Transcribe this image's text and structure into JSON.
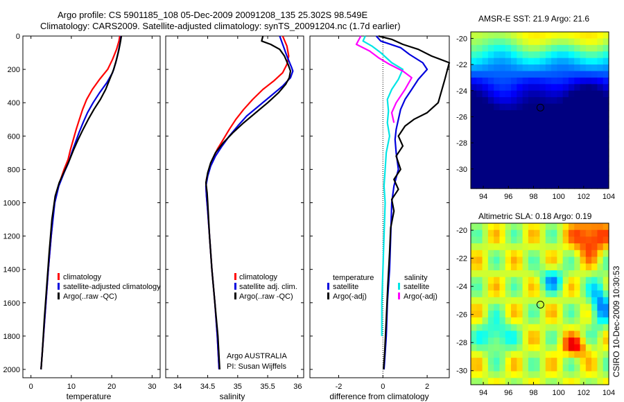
{
  "header": {
    "line1": "Argo profile: CS 5901185_108 05-Dec-2009 20091208_135 25.302S 98.549E",
    "line2": "Climatology: CARS2009. Satellite-adjusted climatology: synTS_20091204.nc (1.7d earlier)"
  },
  "colors": {
    "climatology": "#ff0000",
    "satellite": "#0000dd",
    "argo": "#000000",
    "salinity_sat": "#00e5e5",
    "salinity_argo": "#ff00ff"
  },
  "credits": {
    "org": "Argo AUSTRALIA",
    "pi": "PI: Susan Wijffels",
    "side": "CSIRO 10-Dec-2009 10:30:53"
  },
  "chart_data": [
    {
      "type": "line",
      "name": "temperature",
      "xlabel": "temperature",
      "ylabel": "",
      "xlim": [
        -2,
        32
      ],
      "ylim": [
        2050,
        0
      ],
      "xticks": [
        0,
        10,
        20,
        30
      ],
      "yticks": [
        0,
        200,
        400,
        600,
        800,
        1000,
        1200,
        1400,
        1600,
        1800,
        2000
      ],
      "legend": [
        "climatology",
        "satellite-adjusted climatology",
        "Argo(..raw -QC)"
      ],
      "series": [
        {
          "name": "climatology",
          "color": "#ff0000",
          "points": [
            [
              22.0,
              0
            ],
            [
              21.8,
              30
            ],
            [
              21.2,
              80
            ],
            [
              20.2,
              140
            ],
            [
              19.0,
              200
            ],
            [
              17.0,
              260
            ],
            [
              15.2,
              320
            ],
            [
              13.8,
              380
            ],
            [
              12.8,
              440
            ],
            [
              12.0,
              500
            ],
            [
              11.2,
              560
            ],
            [
              10.5,
              620
            ],
            [
              9.8,
              680
            ],
            [
              9.2,
              740
            ],
            [
              8.2,
              800
            ],
            [
              6.8,
              900
            ],
            [
              5.8,
              1000
            ],
            [
              5.0,
              1200
            ],
            [
              4.3,
              1400
            ],
            [
              3.7,
              1600
            ],
            [
              3.1,
              1800
            ],
            [
              2.5,
              2000
            ]
          ]
        },
        {
          "name": "satellite-adjusted climatology",
          "color": "#0000dd",
          "points": [
            [
              22.3,
              0
            ],
            [
              22.1,
              40
            ],
            [
              21.6,
              100
            ],
            [
              21.0,
              160
            ],
            [
              20.2,
              220
            ],
            [
              18.8,
              280
            ],
            [
              17.0,
              340
            ],
            [
              15.4,
              400
            ],
            [
              14.0,
              460
            ],
            [
              12.9,
              520
            ],
            [
              11.9,
              580
            ],
            [
              11.0,
              640
            ],
            [
              10.1,
              700
            ],
            [
              9.3,
              760
            ],
            [
              8.2,
              820
            ],
            [
              6.9,
              900
            ],
            [
              5.9,
              1000
            ],
            [
              5.0,
              1200
            ],
            [
              4.3,
              1400
            ],
            [
              3.7,
              1600
            ],
            [
              3.1,
              1800
            ],
            [
              2.5,
              2000
            ]
          ]
        },
        {
          "name": "Argo(..raw -QC)",
          "color": "#000000",
          "points": [
            [
              22.4,
              0
            ],
            [
              22.2,
              30
            ],
            [
              21.8,
              80
            ],
            [
              21.2,
              140
            ],
            [
              20.5,
              200
            ],
            [
              19.5,
              260
            ],
            [
              18.5,
              320
            ],
            [
              17.2,
              380
            ],
            [
              15.6,
              440
            ],
            [
              14.2,
              500
            ],
            [
              12.9,
              560
            ],
            [
              11.7,
              620
            ],
            [
              10.6,
              680
            ],
            [
              9.6,
              740
            ],
            [
              8.5,
              800
            ],
            [
              7.0,
              880
            ],
            [
              6.0,
              960
            ],
            [
              5.2,
              1100
            ],
            [
              4.5,
              1300
            ],
            [
              3.9,
              1500
            ],
            [
              3.3,
              1700
            ],
            [
              2.8,
              1900
            ],
            [
              2.5,
              2000
            ]
          ]
        }
      ]
    },
    {
      "type": "line",
      "name": "salinity",
      "xlabel": "salinity",
      "xlim": [
        33.8,
        36.1
      ],
      "ylim": [
        2050,
        0
      ],
      "xticks": [
        34,
        34.5,
        35,
        35.5,
        36
      ],
      "legend": [
        "climatology",
        "satellite adj. clim.",
        "Argo(..raw -QC)"
      ],
      "series": [
        {
          "name": "climatology",
          "color": "#ff0000",
          "points": [
            [
              35.75,
              0
            ],
            [
              35.82,
              60
            ],
            [
              35.85,
              120
            ],
            [
              35.82,
              170
            ],
            [
              35.75,
              220
            ],
            [
              35.6,
              270
            ],
            [
              35.42,
              320
            ],
            [
              35.25,
              380
            ],
            [
              35.1,
              440
            ],
            [
              34.97,
              500
            ],
            [
              34.86,
              560
            ],
            [
              34.76,
              620
            ],
            [
              34.66,
              680
            ],
            [
              34.58,
              740
            ],
            [
              34.52,
              800
            ],
            [
              34.48,
              860
            ],
            [
              34.47,
              900
            ],
            [
              34.48,
              960
            ],
            [
              34.5,
              1050
            ],
            [
              34.53,
              1200
            ],
            [
              34.57,
              1400
            ],
            [
              34.62,
              1600
            ],
            [
              34.66,
              1800
            ],
            [
              34.69,
              2000
            ]
          ]
        },
        {
          "name": "satellite adj. clim.",
          "color": "#0000dd",
          "points": [
            [
              35.7,
              0
            ],
            [
              35.76,
              60
            ],
            [
              35.82,
              120
            ],
            [
              35.9,
              190
            ],
            [
              35.92,
              210
            ],
            [
              35.88,
              250
            ],
            [
              35.75,
              300
            ],
            [
              35.55,
              360
            ],
            [
              35.35,
              420
            ],
            [
              35.15,
              480
            ],
            [
              35.0,
              540
            ],
            [
              34.86,
              600
            ],
            [
              34.74,
              660
            ],
            [
              34.63,
              720
            ],
            [
              34.55,
              780
            ],
            [
              34.5,
              840
            ],
            [
              34.47,
              900
            ],
            [
              34.48,
              960
            ],
            [
              34.5,
              1050
            ],
            [
              34.53,
              1200
            ],
            [
              34.57,
              1400
            ],
            [
              34.62,
              1600
            ],
            [
              34.66,
              1800
            ],
            [
              34.69,
              2000
            ]
          ]
        },
        {
          "name": "Argo(..raw -QC)",
          "color": "#000000",
          "points": [
            [
              35.42,
              0
            ],
            [
              35.4,
              30
            ],
            [
              35.55,
              50
            ],
            [
              35.7,
              80
            ],
            [
              35.78,
              120
            ],
            [
              35.84,
              170
            ],
            [
              35.88,
              210
            ],
            [
              35.86,
              250
            ],
            [
              35.8,
              290
            ],
            [
              35.68,
              340
            ],
            [
              35.5,
              400
            ],
            [
              35.3,
              460
            ],
            [
              35.1,
              520
            ],
            [
              34.92,
              580
            ],
            [
              34.76,
              640
            ],
            [
              34.63,
              700
            ],
            [
              34.55,
              760
            ],
            [
              34.5,
              820
            ],
            [
              34.47,
              880
            ],
            [
              34.49,
              940
            ],
            [
              34.5,
              1000
            ],
            [
              34.53,
              1200
            ],
            [
              34.57,
              1400
            ],
            [
              34.62,
              1600
            ],
            [
              34.67,
              1800
            ],
            [
              34.7,
              2000
            ]
          ]
        }
      ]
    },
    {
      "type": "line",
      "name": "difference",
      "xlabel": "difference from climatology",
      "xlim": [
        -3.3,
        3.0
      ],
      "ylim": [
        2050,
        0
      ],
      "xticks": [
        -2,
        0,
        2
      ],
      "zero_line": 0,
      "legend_left_title": "temperature",
      "legend_right_title": "salinity",
      "legend": [
        "satellite",
        "Argo(-adj)",
        "satellite",
        "Argo(-adj)"
      ],
      "series": [
        {
          "name": "temperature satellite",
          "color": "#0000dd",
          "points": [
            [
              -0.3,
              0
            ],
            [
              -0.1,
              30
            ],
            [
              0.8,
              70
            ],
            [
              1.2,
              110
            ],
            [
              1.8,
              160
            ],
            [
              2.0,
              200
            ],
            [
              1.6,
              260
            ],
            [
              1.3,
              320
            ],
            [
              1.0,
              380
            ],
            [
              0.8,
              440
            ],
            [
              0.7,
              500
            ],
            [
              0.6,
              560
            ],
            [
              0.55,
              620
            ],
            [
              0.6,
              700
            ],
            [
              0.7,
              800
            ],
            [
              0.5,
              900
            ],
            [
              0.4,
              1000
            ],
            [
              0.35,
              1200
            ],
            [
              0.3,
              1400
            ],
            [
              0.2,
              1600
            ],
            [
              0.15,
              1800
            ],
            [
              0.05,
              2000
            ]
          ]
        },
        {
          "name": "temperature Argo(-adj)",
          "color": "#000000",
          "points": [
            [
              -0.2,
              0
            ],
            [
              0.4,
              20
            ],
            [
              0.9,
              50
            ],
            [
              1.6,
              80
            ],
            [
              2.2,
              120
            ],
            [
              3.0,
              160
            ],
            [
              2.8,
              260
            ],
            [
              2.5,
              400
            ],
            [
              2.0,
              460
            ],
            [
              1.4,
              500
            ],
            [
              1.0,
              540
            ],
            [
              0.7,
              600
            ],
            [
              0.9,
              660
            ],
            [
              0.6,
              720
            ],
            [
              0.8,
              800
            ],
            [
              0.5,
              860
            ],
            [
              0.7,
              920
            ],
            [
              0.4,
              980
            ],
            [
              0.5,
              1050
            ],
            [
              0.35,
              1150
            ],
            [
              0.3,
              1300
            ],
            [
              0.22,
              1500
            ],
            [
              0.15,
              1700
            ],
            [
              0.08,
              1900
            ],
            [
              0.03,
              2000
            ]
          ]
        },
        {
          "name": "salinity satellite",
          "color": "#00e5e5",
          "points": [
            [
              -0.8,
              0
            ],
            [
              -0.9,
              30
            ],
            [
              -0.5,
              60
            ],
            [
              -0.1,
              100
            ],
            [
              0.4,
              160
            ],
            [
              0.9,
              200
            ],
            [
              0.7,
              260
            ],
            [
              0.4,
              320
            ],
            [
              0.2,
              380
            ],
            [
              0.25,
              450
            ],
            [
              0.2,
              520
            ],
            [
              0.3,
              600
            ],
            [
              0.15,
              700
            ],
            [
              0.1,
              800
            ],
            [
              0.05,
              900
            ],
            [
              0.1,
              1000
            ],
            [
              0.05,
              1200
            ],
            [
              0.0,
              1400
            ],
            [
              -0.05,
              1600
            ],
            [
              -0.05,
              1800
            ]
          ]
        },
        {
          "name": "salinity Argo(-adj)",
          "color": "#ff00ff",
          "points": [
            [
              -1.0,
              0
            ],
            [
              -1.2,
              50
            ],
            [
              -0.6,
              90
            ],
            [
              -0.2,
              130
            ],
            [
              0.3,
              170
            ],
            [
              0.9,
              210
            ],
            [
              1.3,
              250
            ],
            [
              1.0,
              320
            ],
            [
              0.6,
              400
            ],
            [
              0.4,
              460
            ],
            [
              0.5,
              520
            ]
          ]
        }
      ]
    },
    {
      "type": "heatmap",
      "name": "sst-map",
      "title_prefix": "AMSR-E SST: ",
      "sst": "21.9",
      "title_mid": " Argo: ",
      "argo": "21.6",
      "xlim": [
        93,
        104
      ],
      "ylim": [
        -31.5,
        -19.5
      ],
      "xticks": [
        94,
        96,
        98,
        100,
        102,
        104
      ],
      "yticks": [
        -20,
        -22,
        -24,
        -26,
        -28,
        -30
      ],
      "marker": {
        "lon": 98.55,
        "lat": -25.3
      },
      "colormap": "jet",
      "crange": [
        19,
        25
      ]
    },
    {
      "type": "heatmap",
      "name": "sla-map",
      "title_prefix": "Altimetric SLA: ",
      "sla": "0.18",
      "title_mid": " Argo: ",
      "argo": "0.19",
      "xlim": [
        93,
        104
      ],
      "ylim": [
        -31,
        -19.5
      ],
      "xticks": [
        94,
        96,
        98,
        100,
        102,
        104
      ],
      "yticks": [
        -20,
        -22,
        -24,
        -26,
        -28,
        -30
      ],
      "marker": {
        "lon": 98.55,
        "lat": -25.3
      },
      "colormap": "jet",
      "crange": [
        -0.4,
        0.5
      ]
    }
  ]
}
